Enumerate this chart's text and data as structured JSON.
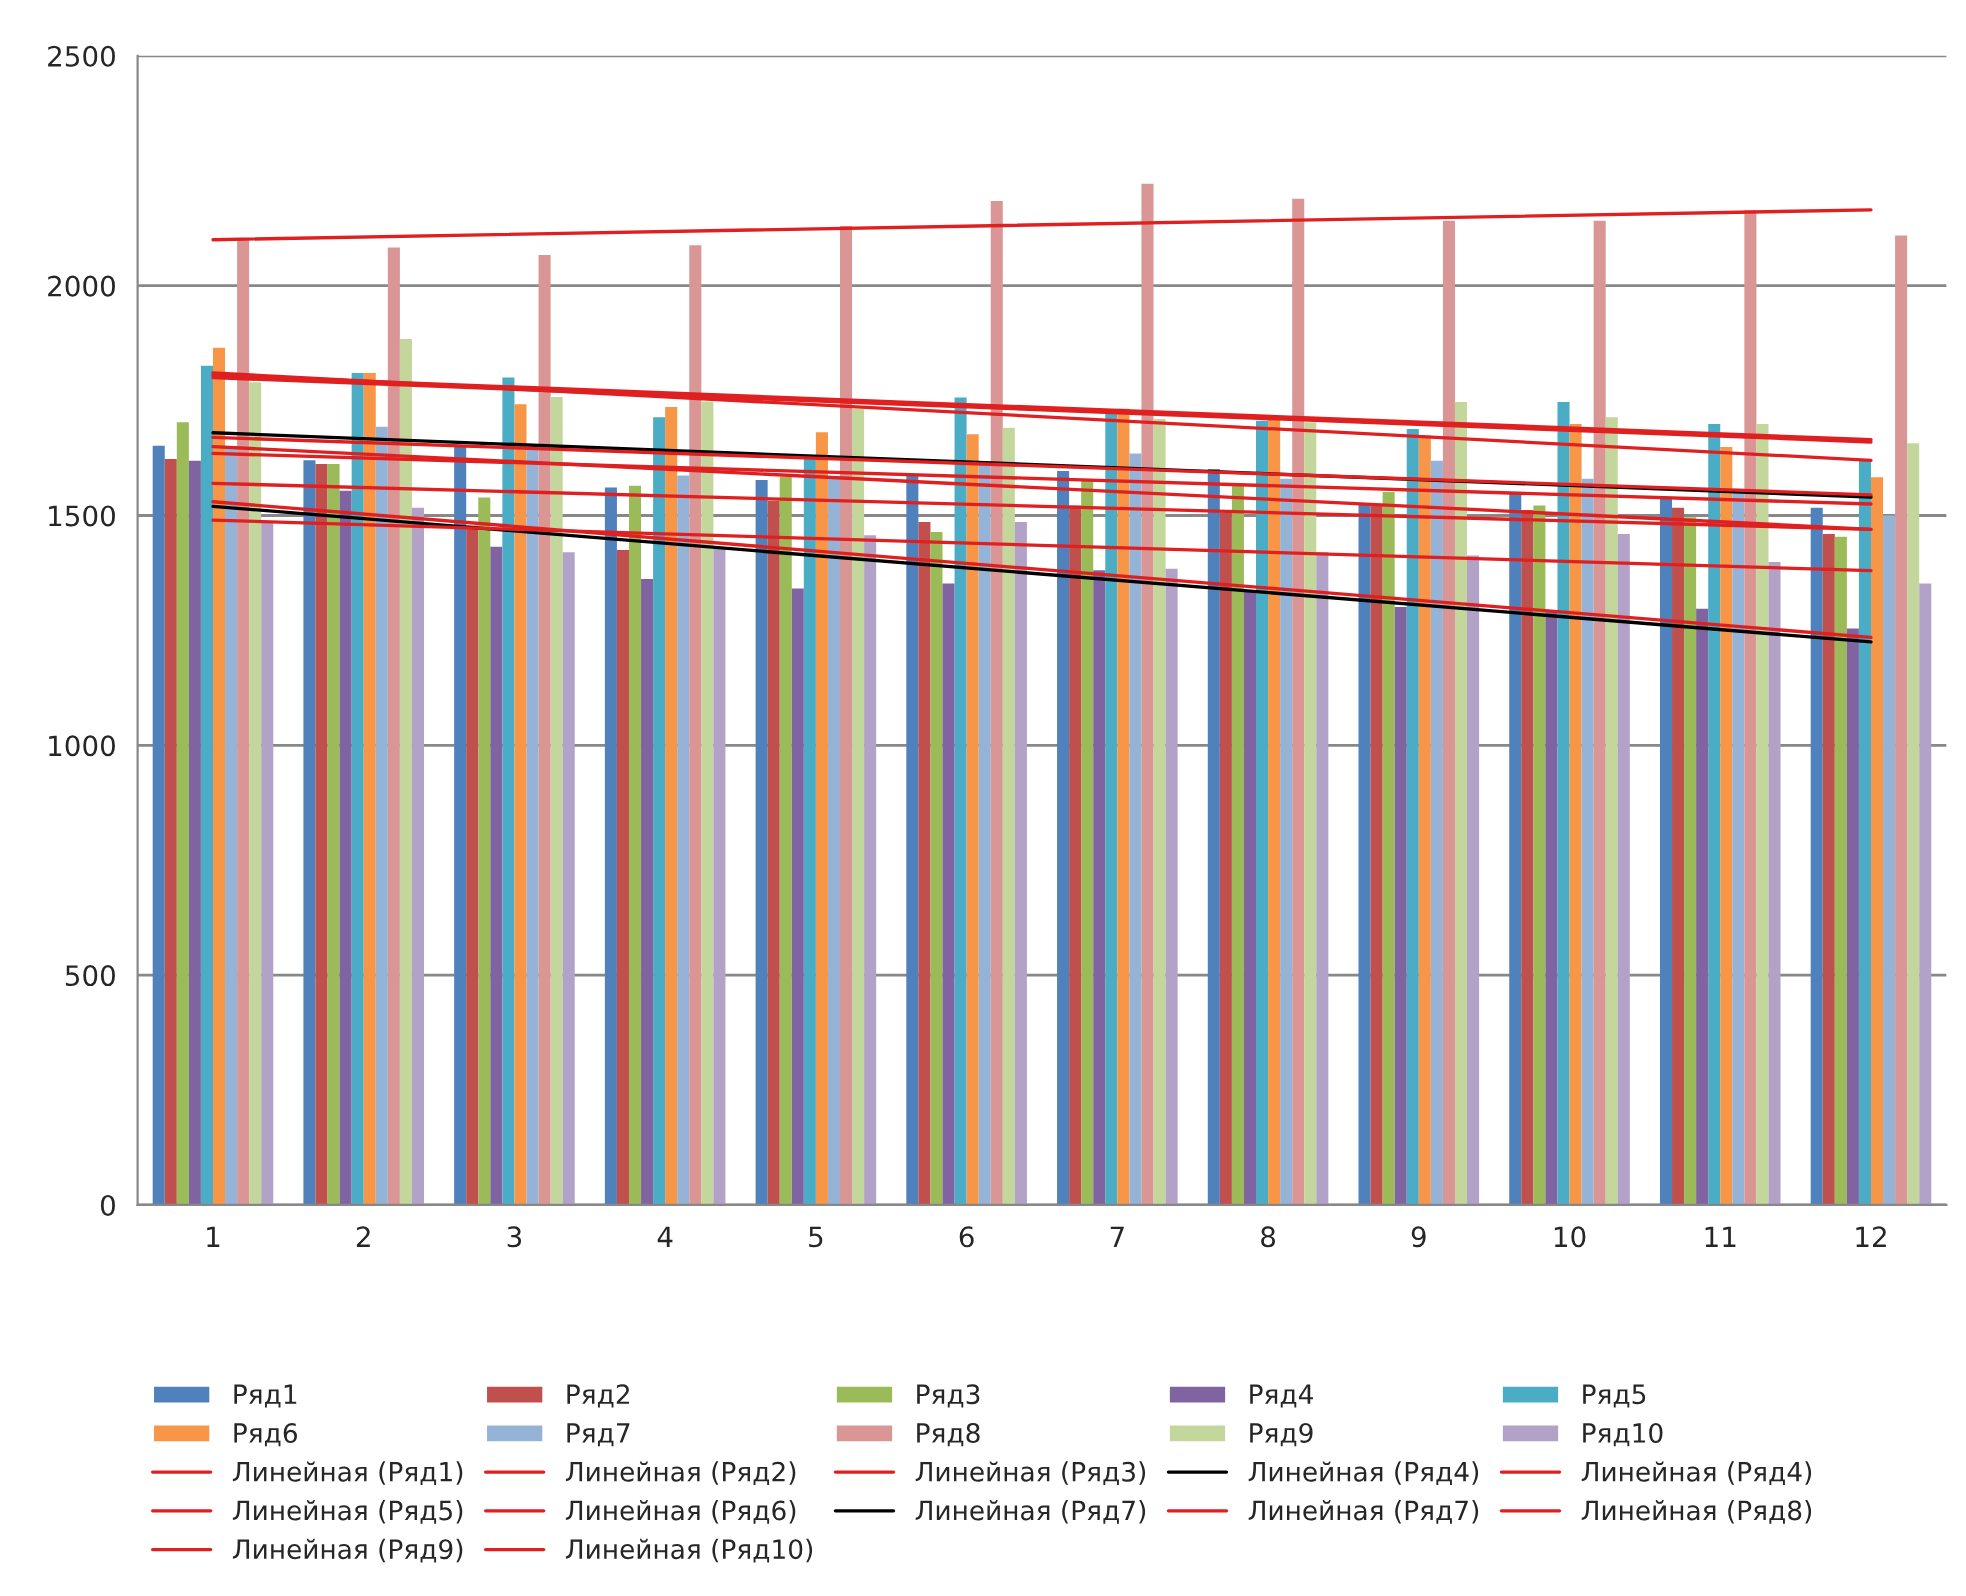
{
  "chart_data": {
    "type": "bar",
    "categories": [
      "1",
      "2",
      "3",
      "4",
      "5",
      "6",
      "7",
      "8",
      "9",
      "10",
      "11",
      "12"
    ],
    "ylim": [
      0,
      2500
    ],
    "yticks": [
      0,
      500,
      1000,
      1500,
      2000,
      2500
    ],
    "grid": "y",
    "legend": "bottom",
    "series": [
      {
        "name": "Ряд1",
        "color": "#4f81bd",
        "values": [
          1652,
          1620,
          1651,
          1561,
          1577,
          1587,
          1597,
          1601,
          1526,
          1548,
          1536,
          1517
        ]
      },
      {
        "name": "Ряд2",
        "color": "#c0504d",
        "values": [
          1623,
          1612,
          1478,
          1425,
          1532,
          1486,
          1522,
          1506,
          1522,
          1512,
          1517,
          1460
        ]
      },
      {
        "name": "Ряд3",
        "color": "#9bbb59",
        "values": [
          1703,
          1612,
          1539,
          1565,
          1584,
          1464,
          1575,
          1570,
          1551,
          1522,
          1496,
          1454
        ]
      },
      {
        "name": "Ряд4",
        "color": "#8064a2",
        "values": [
          1619,
          1554,
          1432,
          1362,
          1341,
          1352,
          1381,
          1335,
          1301,
          1290,
          1297,
          1254
        ]
      },
      {
        "name": "Ряд5",
        "color": "#4bacc6",
        "values": [
          1826,
          1810,
          1800,
          1714,
          1628,
          1757,
          1722,
          1706,
          1688,
          1747,
          1699,
          1623
        ]
      },
      {
        "name": "Ряд6",
        "color": "#f79646",
        "values": [
          1865,
          1810,
          1742,
          1736,
          1681,
          1677,
          1732,
          1714,
          1674,
          1699,
          1649,
          1583
        ]
      },
      {
        "name": "Ряд7",
        "color": "#95b3d7",
        "values": [
          1650,
          1693,
          1645,
          1587,
          1580,
          1617,
          1635,
          1580,
          1619,
          1580,
          1558,
          1500
        ]
      },
      {
        "name": "Ряд8",
        "color": "#d99694",
        "values": [
          2101,
          2083,
          2067,
          2088,
          2130,
          2184,
          2222,
          2189,
          2141,
          2141,
          2164,
          2109
        ]
      },
      {
        "name": "Ряд9",
        "color": "#c3d69b",
        "values": [
          1790,
          1884,
          1758,
          1748,
          1732,
          1691,
          1710,
          1703,
          1747,
          1714,
          1699,
          1657
        ]
      },
      {
        "name": "Ряд10",
        "color": "#b3a2c7",
        "values": [
          1488,
          1517,
          1420,
          1430,
          1457,
          1486,
          1384,
          1420,
          1413,
          1460,
          1399,
          1352
        ]
      },
      {
        "name": "Линейная (Ряд1)",
        "type": "line",
        "color": "#e02020",
        "x": [
          "1",
          "12"
        ],
        "values": [
          1635,
          1525
        ]
      },
      {
        "name": "Линейная (Ряд2)",
        "type": "line",
        "color": "#e02020",
        "x": [
          "1",
          "12"
        ],
        "values": [
          1570,
          1470
        ]
      },
      {
        "name": "Линейная (Ряд3)",
        "type": "line",
        "color": "#e02020",
        "x": [
          "1",
          "12"
        ],
        "values": [
          1650,
          1470
        ]
      },
      {
        "name": "Линейная (Ряд4)",
        "type": "line",
        "color": "#000000",
        "x": [
          "1",
          "12"
        ],
        "values": [
          1520,
          1225
        ]
      },
      {
        "name": "Линейная (Ряд4)",
        "type": "line",
        "color": "#e02020",
        "x": [
          "1",
          "12"
        ],
        "values": [
          1530,
          1235
        ]
      },
      {
        "name": "Линейная (Ряд5)",
        "type": "line",
        "color": "#e02020",
        "x": [
          "1",
          "12"
        ],
        "values": [
          1800,
          1660
        ]
      },
      {
        "name": "Линейная (Ряд6)",
        "type": "line",
        "color": "#e02020",
        "x": [
          "1",
          "12"
        ],
        "values": [
          1810,
          1620
        ]
      },
      {
        "name": "Линейная (Ряд7)",
        "type": "line",
        "color": "#000000",
        "x": [
          "1",
          "12"
        ],
        "values": [
          1680,
          1540
        ]
      },
      {
        "name": "Линейная (Ряд7)",
        "type": "line",
        "color": "#e02020",
        "x": [
          "1",
          "12"
        ],
        "values": [
          1670,
          1545
        ]
      },
      {
        "name": "Линейная (Ряд8)",
        "type": "line",
        "color": "#e02020",
        "x": [
          "1",
          "12"
        ],
        "values": [
          2100,
          2165
        ]
      },
      {
        "name": "Линейная (Ряд9)",
        "type": "line",
        "color": "#e02020",
        "x": [
          "1",
          "12"
        ],
        "values": [
          1805,
          1665
        ]
      },
      {
        "name": "Линейная (Ряд10)",
        "type": "line",
        "color": "#e02020",
        "x": [
          "1",
          "12"
        ],
        "values": [
          1490,
          1380
        ]
      }
    ]
  }
}
